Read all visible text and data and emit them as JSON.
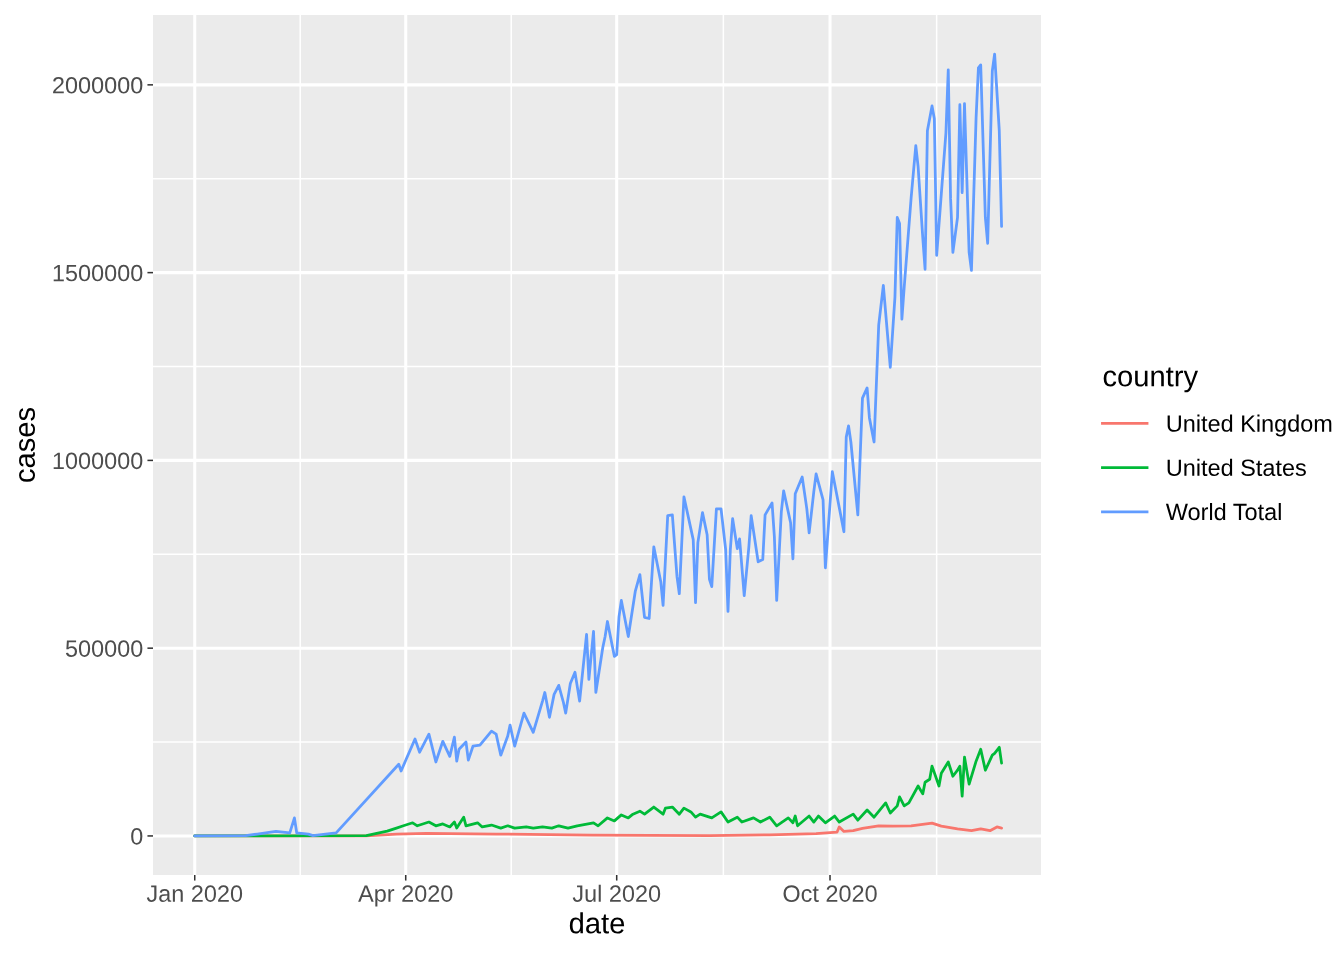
{
  "chart_data": {
    "type": "line",
    "xlabel": "date",
    "ylabel": "cases",
    "legend_title": "country",
    "legend": "right",
    "grid": true,
    "xlim": [
      "2019-12-14",
      "2020-12-31"
    ],
    "xticks": [
      {
        "value": "2020-01-01",
        "label": "Jan 2020"
      },
      {
        "value": "2020-04-01",
        "label": "Apr 2020"
      },
      {
        "value": "2020-07-01",
        "label": "Jul 2020"
      },
      {
        "value": "2020-10-01",
        "label": "Oct 2020"
      }
    ],
    "ylim": [
      -104000,
      2186000
    ],
    "yticks": [
      0,
      500000,
      1000000,
      1500000,
      2000000
    ],
    "series": [
      {
        "name": "United Kingdom",
        "color": "#F8766D",
        "x": [
          "2020-01-01",
          "2020-03-15",
          "2020-03-28",
          "2020-04-10",
          "2020-05-10",
          "2020-06-20",
          "2020-08-10",
          "2020-09-05",
          "2020-09-25",
          "2020-10-04",
          "2020-10-05",
          "2020-10-07",
          "2020-10-11",
          "2020-10-15",
          "2020-10-22",
          "2020-10-28",
          "2020-11-05",
          "2020-11-14",
          "2020-11-18",
          "2020-11-25",
          "2020-12-01",
          "2020-12-05",
          "2020-12-09",
          "2020-12-12",
          "2020-12-14"
        ],
        "values": [
          0,
          0,
          5000,
          7000,
          5000,
          2000,
          1000,
          3000,
          6000,
          10000,
          24000,
          12000,
          14000,
          20000,
          27000,
          26000,
          27000,
          34000,
          26000,
          19000,
          14000,
          19000,
          14000,
          24000,
          21000
        ]
      },
      {
        "name": "United States",
        "color": "#00BA38",
        "x": [
          "2020-01-01",
          "2020-03-15",
          "2020-03-24",
          "2020-03-28",
          "2020-03-31",
          "2020-04-04",
          "2020-04-06",
          "2020-04-11",
          "2020-04-14",
          "2020-04-17",
          "2020-04-20",
          "2020-04-22",
          "2020-04-23",
          "2020-04-26",
          "2020-04-27",
          "2020-05-02",
          "2020-05-04",
          "2020-05-08",
          "2020-05-12",
          "2020-05-15",
          "2020-05-18",
          "2020-05-23",
          "2020-05-26",
          "2020-05-30",
          "2020-06-03",
          "2020-06-06",
          "2020-06-10",
          "2020-06-14",
          "2020-06-21",
          "2020-06-23",
          "2020-06-27",
          "2020-06-30",
          "2020-07-03",
          "2020-07-06",
          "2020-07-08",
          "2020-07-11",
          "2020-07-13",
          "2020-07-17",
          "2020-07-21",
          "2020-07-22",
          "2020-07-25",
          "2020-07-28",
          "2020-07-30",
          "2020-08-02",
          "2020-08-04",
          "2020-08-06",
          "2020-08-11",
          "2020-08-15",
          "2020-08-18",
          "2020-08-22",
          "2020-08-24",
          "2020-08-29",
          "2020-09-01",
          "2020-09-05",
          "2020-09-08",
          "2020-09-13",
          "2020-09-15",
          "2020-09-16",
          "2020-09-17",
          "2020-09-22",
          "2020-09-24",
          "2020-09-26",
          "2020-09-29",
          "2020-10-03",
          "2020-10-05",
          "2020-10-11",
          "2020-10-13",
          "2020-10-17",
          "2020-10-20",
          "2020-10-25",
          "2020-10-27",
          "2020-10-30",
          "2020-10-31",
          "2020-11-02",
          "2020-11-04",
          "2020-11-08",
          "2020-11-10",
          "2020-11-11",
          "2020-11-13",
          "2020-11-14",
          "2020-11-17",
          "2020-11-18",
          "2020-11-21",
          "2020-11-23",
          "2020-11-25",
          "2020-11-26",
          "2020-11-27",
          "2020-11-28",
          "2020-11-30",
          "2020-12-03",
          "2020-12-05",
          "2020-12-07",
          "2020-12-10",
          "2020-12-11",
          "2020-12-13",
          "2020-12-14"
        ],
        "values": [
          0,
          1000,
          13000,
          21000,
          27000,
          35000,
          27000,
          37000,
          27000,
          32000,
          24000,
          37000,
          21000,
          50000,
          27000,
          35000,
          24000,
          29000,
          21000,
          27000,
          21000,
          24000,
          21000,
          24000,
          21000,
          27000,
          21000,
          27000,
          35000,
          27000,
          48000,
          40000,
          56000,
          48000,
          58000,
          66000,
          58000,
          77000,
          58000,
          74000,
          77000,
          58000,
          74000,
          64000,
          50000,
          58000,
          48000,
          64000,
          37000,
          50000,
          37000,
          48000,
          37000,
          50000,
          27000,
          48000,
          35000,
          53000,
          27000,
          53000,
          37000,
          53000,
          35000,
          53000,
          37000,
          58000,
          42000,
          69000,
          50000,
          88000,
          61000,
          80000,
          104000,
          80000,
          88000,
          133000,
          112000,
          143000,
          151000,
          186000,
          133000,
          167000,
          197000,
          159000,
          175000,
          186000,
          106000,
          210000,
          138000,
          199000,
          231000,
          175000,
          215000,
          220000,
          236000,
          194000
        ]
      },
      {
        "name": "World Total",
        "color": "#619CFF",
        "x": [
          "2020-01-01",
          "2020-01-23",
          "2020-01-28",
          "2020-02-05",
          "2020-02-11",
          "2020-02-13",
          "2020-02-14",
          "2020-02-19",
          "2020-02-21",
          "2020-03-02",
          "2020-03-29",
          "2020-03-30",
          "2020-04-05",
          "2020-04-07",
          "2020-04-11",
          "2020-04-14",
          "2020-04-17",
          "2020-04-20",
          "2020-04-22",
          "2020-04-23",
          "2020-04-24",
          "2020-04-27",
          "2020-04-28",
          "2020-04-30",
          "2020-05-03",
          "2020-05-08",
          "2020-05-10",
          "2020-05-12",
          "2020-05-15",
          "2020-05-16",
          "2020-05-18",
          "2020-05-22",
          "2020-05-26",
          "2020-05-30",
          "2020-05-31",
          "2020-06-02",
          "2020-06-04",
          "2020-06-06",
          "2020-06-08",
          "2020-06-09",
          "2020-06-11",
          "2020-06-13",
          "2020-06-15",
          "2020-06-18",
          "2020-06-19",
          "2020-06-21",
          "2020-06-22",
          "2020-06-25",
          "2020-06-26",
          "2020-06-27",
          "2020-06-30",
          "2020-07-01",
          "2020-07-02",
          "2020-07-03",
          "2020-07-06",
          "2020-07-09",
          "2020-07-11",
          "2020-07-13",
          "2020-07-15",
          "2020-07-16",
          "2020-07-17",
          "2020-07-20",
          "2020-07-21",
          "2020-07-23",
          "2020-07-25",
          "2020-07-27",
          "2020-07-28",
          "2020-07-30",
          "2020-08-03",
          "2020-08-04",
          "2020-08-05",
          "2020-08-07",
          "2020-08-09",
          "2020-08-10",
          "2020-08-11",
          "2020-08-13",
          "2020-08-15",
          "2020-08-17",
          "2020-08-18",
          "2020-08-19",
          "2020-08-20",
          "2020-08-22",
          "2020-08-23",
          "2020-08-25",
          "2020-08-27",
          "2020-08-28",
          "2020-08-31",
          "2020-09-02",
          "2020-09-03",
          "2020-09-06",
          "2020-09-07",
          "2020-09-08",
          "2020-09-10",
          "2020-09-11",
          "2020-09-14",
          "2020-09-15",
          "2020-09-16",
          "2020-09-19",
          "2020-09-21",
          "2020-09-22",
          "2020-09-24",
          "2020-09-25",
          "2020-09-28",
          "2020-09-29",
          "2020-10-02",
          "2020-10-07",
          "2020-10-08",
          "2020-10-09",
          "2020-10-10",
          "2020-10-13",
          "2020-10-15",
          "2020-10-17",
          "2020-10-18",
          "2020-10-20",
          "2020-10-22",
          "2020-10-24",
          "2020-10-27",
          "2020-10-29",
          "2020-10-30",
          "2020-10-31",
          "2020-11-01",
          "2020-11-02",
          "2020-11-05",
          "2020-11-07",
          "2020-11-08",
          "2020-11-10",
          "2020-11-11",
          "2020-11-12",
          "2020-11-14",
          "2020-11-15",
          "2020-11-16",
          "2020-11-20",
          "2020-11-21",
          "2020-11-22",
          "2020-11-23",
          "2020-11-25",
          "2020-11-26",
          "2020-11-27",
          "2020-11-28",
          "2020-11-30",
          "2020-12-01",
          "2020-12-03",
          "2020-12-04",
          "2020-12-05",
          "2020-12-07",
          "2020-12-08",
          "2020-12-10",
          "2020-12-11",
          "2020-12-13",
          "2020-12-14"
        ],
        "values": [
          0,
          1000,
          5000,
          12000,
          8000,
          48000,
          8000,
          5000,
          1000,
          8000,
          191000,
          173000,
          258000,
          223000,
          271000,
          197000,
          252000,
          212000,
          263000,
          199000,
          231000,
          250000,
          202000,
          239000,
          242000,
          279000,
          271000,
          215000,
          266000,
          295000,
          239000,
          327000,
          276000,
          359000,
          382000,
          316000,
          377000,
          401000,
          356000,
          327000,
          406000,
          436000,
          359000,
          537000,
          417000,
          545000,
          382000,
          502000,
          531000,
          571000,
          478000,
          483000,
          584000,
          627000,
          531000,
          651000,
          696000,
          582000,
          579000,
          675000,
          770000,
          677000,
          614000,
          853000,
          855000,
          691000,
          645000,
          903000,
          789000,
          621000,
          781000,
          861000,
          802000,
          683000,
          664000,
          871000,
          871000,
          762000,
          598000,
          762000,
          845000,
          765000,
          791000,
          640000,
          770000,
          853000,
          730000,
          736000,
          855000,
          887000,
          797000,
          627000,
          863000,
          919000,
          834000,
          738000,
          911000,
          956000,
          871000,
          807000,
          916000,
          964000,
          895000,
          714000,
          970000,
          810000,
          1062000,
          1092000,
          1049000,
          855000,
          1166000,
          1193000,
          1113000,
          1049000,
          1360000,
          1466000,
          1248000,
          1434000,
          1647000,
          1631000,
          1376000,
          1461000,
          1700000,
          1838000,
          1782000,
          1594000,
          1509000,
          1878000,
          1944000,
          1910000,
          1546000,
          1873000,
          2040000,
          1697000,
          1554000,
          1647000,
          1947000,
          1713000,
          1950000,
          1554000,
          1506000,
          1912000,
          2045000,
          2053000,
          1647000,
          1578000,
          2037000,
          2082000,
          1878000,
          1623000
        ]
      }
    ]
  }
}
